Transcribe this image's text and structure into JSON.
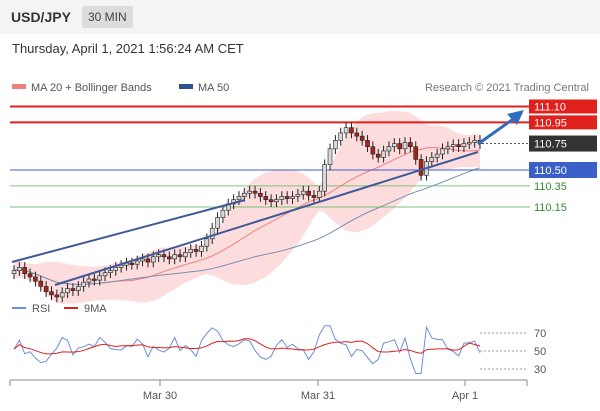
{
  "header": {
    "symbol": "USD/JPY",
    "timeframe": "30 MIN"
  },
  "datetime": "Thursday, April 1, 2021 1:56:24 AM CET",
  "legend": [
    {
      "label": "MA 20 + Bollinger Bands",
      "color": "#f08080"
    },
    {
      "label": "MA 50",
      "color": "#2f4f8f"
    }
  ],
  "credit": "Research © 2021 Trading Central",
  "colors": {
    "resistance": "#e0201c",
    "support_line": "#3a5fc8",
    "support": "#5cb85c",
    "candle_up": "#d8d8d8",
    "candle_down": "#a3251b",
    "trend": "#3f5a9a",
    "arrow": "#2f6dbf",
    "rsi": "#6b8fd8",
    "ma9": "#e02020"
  },
  "chart_data": [
    {
      "type": "candlestick",
      "x_ticks": [
        "Mar 30",
        "Mar 31",
        "Apr 1"
      ],
      "levels": [
        {
          "value": 111.1,
          "label": "111.10",
          "kind": "resistance"
        },
        {
          "value": 110.95,
          "label": "110.95",
          "kind": "resistance"
        },
        {
          "value": 110.75,
          "label": "110.75",
          "kind": "current"
        },
        {
          "value": 110.5,
          "label": "110.50",
          "kind": "pivot"
        },
        {
          "value": 110.35,
          "label": "110.35",
          "kind": "support"
        },
        {
          "value": 110.15,
          "label": "110.15",
          "kind": "support"
        }
      ],
      "close": [
        109.55,
        109.58,
        109.52,
        109.49,
        109.45,
        109.4,
        109.35,
        109.32,
        109.3,
        109.34,
        109.38,
        109.36,
        109.4,
        109.44,
        109.47,
        109.46,
        109.5,
        109.53,
        109.55,
        109.58,
        109.6,
        109.62,
        109.61,
        109.64,
        109.66,
        109.63,
        109.68,
        109.7,
        109.68,
        109.66,
        109.7,
        109.68,
        109.72,
        109.75,
        109.73,
        109.78,
        109.85,
        109.95,
        110.05,
        110.12,
        110.18,
        110.22,
        110.25,
        110.28,
        110.3,
        110.28,
        110.25,
        110.22,
        110.2,
        110.22,
        110.25,
        110.23,
        110.25,
        110.27,
        110.3,
        110.26,
        110.24,
        110.3,
        110.55,
        110.7,
        110.78,
        110.85,
        110.9,
        110.85,
        110.82,
        110.78,
        110.72,
        110.65,
        110.62,
        110.68,
        110.72,
        110.75,
        110.7,
        110.76,
        110.72,
        110.6,
        110.45,
        110.58,
        110.62,
        110.65,
        110.7,
        110.72,
        110.74,
        110.72,
        110.75,
        110.76,
        110.78,
        110.75
      ],
      "rsi": {
        "ticks": [
          70,
          50,
          30
        ],
        "range": [
          15,
          85
        ]
      },
      "legend": [
        "RSI",
        "9MA"
      ]
    }
  ]
}
